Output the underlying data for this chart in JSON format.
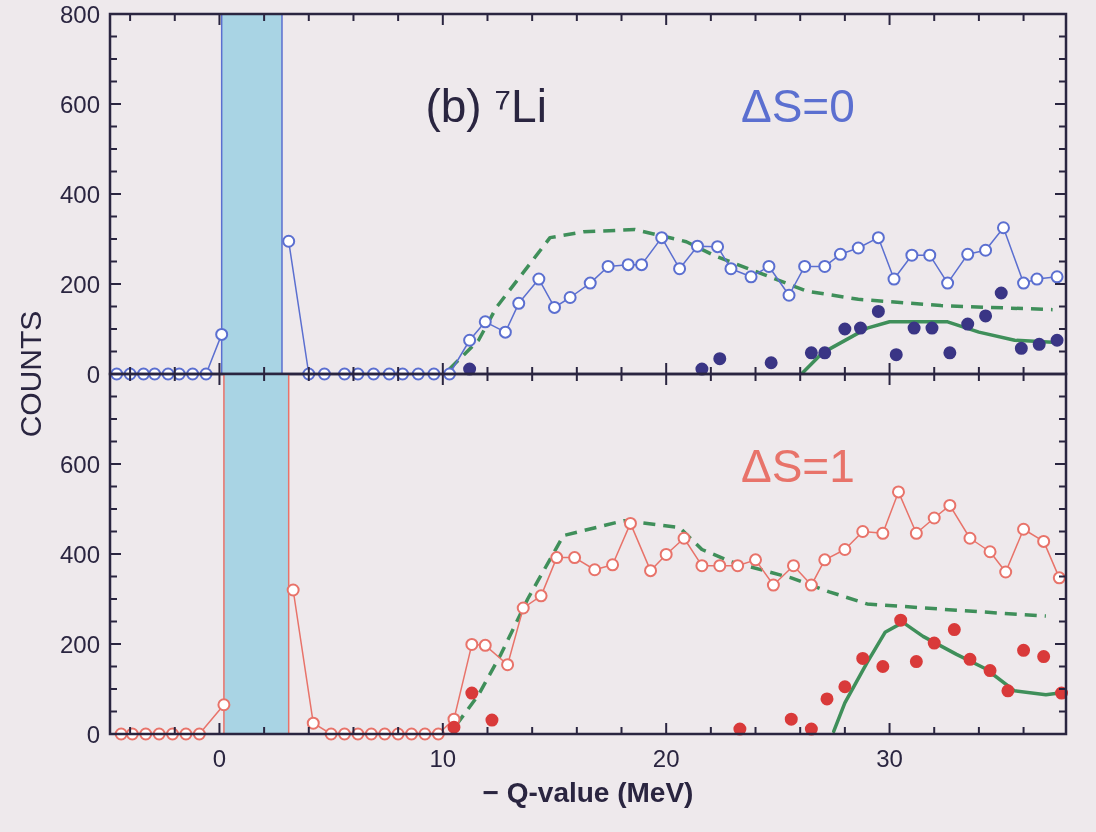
{
  "chart_data": [
    {
      "type": "line",
      "annotations": [
        "(b)  ⁷Li",
        "ΔS=0"
      ],
      "ylabel": "COUNTS",
      "xlim": [
        -4.9,
        37.9
      ],
      "ylim": [
        0,
        800
      ],
      "xticks": [
        {
          "value": -4,
          "label": null
        },
        {
          "value": -2,
          "label": null
        },
        0,
        {
          "value": 2,
          "label": null
        },
        {
          "value": 4,
          "label": null
        },
        {
          "value": 6,
          "label": null
        },
        {
          "value": 8,
          "label": null
        },
        10,
        {
          "value": 12,
          "label": null
        },
        {
          "value": 14,
          "label": null
        },
        {
          "value": 16,
          "label": null
        },
        {
          "value": 18,
          "label": null
        },
        20,
        {
          "value": 22,
          "label": null
        },
        {
          "value": 24,
          "label": null
        },
        {
          "value": 26,
          "label": null
        },
        {
          "value": 28,
          "label": null
        },
        30,
        {
          "value": 32,
          "label": null
        },
        {
          "value": 34,
          "label": null
        },
        {
          "value": 36,
          "label": null
        }
      ],
      "yticks": [
        0,
        {
          "value": 50,
          "label": null
        },
        {
          "value": 100,
          "label": null
        },
        {
          "value": 150,
          "label": null
        },
        200,
        {
          "value": 250,
          "label": null
        },
        {
          "value": 300,
          "label": null
        },
        {
          "value": 350,
          "label": null
        },
        400,
        {
          "value": 450,
          "label": null
        },
        {
          "value": 500,
          "label": null
        },
        {
          "value": 550,
          "label": null
        },
        600,
        {
          "value": 650,
          "label": null
        },
        {
          "value": 700,
          "label": null
        },
        {
          "value": 750,
          "label": null
        },
        800
      ],
      "tick_labels": "y",
      "bands": [
        {
          "axis": "x",
          "from": 0.1,
          "to": 2.8,
          "color": "#a9d4e4"
        }
      ],
      "series": [
        {
          "type": "line",
          "color": "#3f8f5a",
          "line_style": "dashed",
          "marker": "none",
          "x": [
            10.3,
            11.6,
            12.4,
            14.8,
            16.3,
            18.6,
            20.9,
            22.2,
            24.9,
            26.3,
            28.6,
            32.3,
            37.3
          ],
          "values": [
            11,
            75,
            148,
            303,
            316,
            321,
            294,
            262,
            211,
            184,
            166,
            152,
            143
          ]
        },
        {
          "type": "line",
          "color": "#3f8f5a",
          "marker": "none",
          "x": [
            26.1,
            27.0,
            29.0,
            30.0,
            32.6,
            34.0,
            35.6,
            37.5
          ],
          "values": [
            2,
            47,
            102,
            116,
            116,
            93,
            75,
            70
          ]
        },
        {
          "type": "line",
          "color": "#5b6fd0",
          "marker": "circle",
          "x": [
            -4.6,
            -4.0,
            -3.4,
            -2.9,
            -2.3,
            -1.8,
            -1.2,
            -0.6,
            0.1,
            1.5,
            3.1,
            4.0,
            4.7,
            5.6,
            6.2,
            6.9,
            7.6,
            8.2,
            8.9,
            9.6,
            10.3,
            11.2,
            11.9,
            12.8,
            13.4,
            14.3,
            15.0,
            15.7,
            16.6,
            17.4,
            18.3,
            18.9,
            19.8,
            20.6,
            21.4,
            22.3,
            22.9,
            23.8,
            24.6,
            25.5,
            26.2,
            27.1,
            27.8,
            28.6,
            29.5,
            30.2,
            31.0,
            31.8,
            32.6,
            33.5,
            34.3,
            35.1,
            36.0,
            36.6,
            37.5
          ],
          "values": [
            0,
            0,
            0,
            0,
            0,
            0,
            0,
            0,
            88,
            null,
            295,
            0,
            0,
            0,
            0,
            0,
            0,
            0,
            0,
            0,
            0,
            75,
            116,
            93,
            157,
            211,
            148,
            170,
            202,
            239,
            243,
            243,
            303,
            234,
            284,
            283,
            234,
            216,
            239,
            175,
            239,
            239,
            266,
            280,
            303,
            211,
            264,
            264,
            202,
            266,
            275,
            325,
            202,
            211,
            216
          ]
        },
        {
          "type": "scatter",
          "color": "#3a3585",
          "marker": "circle",
          "x": [
            11.2,
            21.6,
            22.4,
            24.7,
            26.5,
            27.1,
            28.0,
            28.7,
            29.5,
            30.3,
            31.1,
            31.9,
            32.7,
            33.5,
            34.3,
            35.0,
            35.9,
            36.7,
            37.5
          ],
          "values": [
            11,
            11,
            34,
            25,
            47,
            47,
            100,
            102,
            139,
            43,
            102,
            102,
            47,
            111,
            129,
            180,
            57,
            66,
            75
          ]
        }
      ]
    },
    {
      "type": "line",
      "annotations": [
        "ΔS=1"
      ],
      "xlabel": "− Q-value (MeV)",
      "xlim": [
        -4.9,
        37.9
      ],
      "ylim": [
        0,
        800
      ],
      "xticks": [
        {
          "value": -4,
          "label": null
        },
        {
          "value": -2,
          "label": null
        },
        0,
        {
          "value": 2,
          "label": null
        },
        {
          "value": 4,
          "label": null
        },
        {
          "value": 6,
          "label": null
        },
        {
          "value": 8,
          "label": null
        },
        10,
        {
          "value": 12,
          "label": null
        },
        {
          "value": 14,
          "label": null
        },
        {
          "value": 16,
          "label": null
        },
        {
          "value": 18,
          "label": null
        },
        20,
        {
          "value": 22,
          "label": null
        },
        {
          "value": 24,
          "label": null
        },
        {
          "value": 26,
          "label": null
        },
        {
          "value": 28,
          "label": null
        },
        30,
        {
          "value": 32,
          "label": null
        },
        {
          "value": 34,
          "label": null
        },
        {
          "value": 36,
          "label": null
        }
      ],
      "yticks": [
        0,
        {
          "value": 50,
          "label": null
        },
        {
          "value": 100,
          "label": null
        },
        {
          "value": 150,
          "label": null
        },
        200,
        {
          "value": 250,
          "label": null
        },
        {
          "value": 300,
          "label": null
        },
        {
          "value": 350,
          "label": null
        },
        400,
        {
          "value": 450,
          "label": null
        },
        {
          "value": 500,
          "label": null
        },
        {
          "value": 550,
          "label": null
        },
        600,
        {
          "value": 650,
          "label": null
        },
        {
          "value": 700,
          "label": null
        },
        {
          "value": 750,
          "label": null
        },
        {
          "value": 800,
          "label": null
        }
      ],
      "bands": [
        {
          "axis": "x",
          "from": 0.2,
          "to": 3.1,
          "color": "#a9d4e4"
        }
      ],
      "series": [
        {
          "type": "line",
          "color": "#3f8f5a",
          "line_style": "dashed",
          "marker": "none",
          "x": [
            10.6,
            11.6,
            12.6,
            13.8,
            15.4,
            18.1,
            20.6,
            21.6,
            22.9,
            25.6,
            27.3,
            29.0,
            33.0,
            37.0
          ],
          "values": [
            20,
            87,
            177,
            300,
            441,
            474,
            459,
            410,
            383,
            347,
            316,
            289,
            275,
            262
          ]
        },
        {
          "type": "line",
          "color": "#3f8f5a",
          "marker": "none",
          "x": [
            27.5,
            28.0,
            29.0,
            29.8,
            30.6,
            31.5,
            33.0,
            34.3,
            35.6,
            37.0,
            37.6
          ],
          "values": [
            6,
            69,
            159,
            226,
            248,
            217,
            177,
            145,
            96,
            87,
            91
          ]
        },
        {
          "type": "line",
          "color": "#e8736a",
          "marker": "circle",
          "x": [
            -4.4,
            -3.9,
            -3.3,
            -2.7,
            -2.1,
            -1.5,
            -0.9,
            0.2,
            1.6,
            3.3,
            4.2,
            5.0,
            5.6,
            6.2,
            6.8,
            7.4,
            8.0,
            8.6,
            9.2,
            9.8,
            10.5,
            11.3,
            11.9,
            12.9,
            13.6,
            14.4,
            15.1,
            15.9,
            16.8,
            17.6,
            18.4,
            19.3,
            20.0,
            20.8,
            21.6,
            22.4,
            23.2,
            24.0,
            24.8,
            25.7,
            26.5,
            27.1,
            28.0,
            28.8,
            29.7,
            30.4,
            31.2,
            32.0,
            32.7,
            33.6,
            34.5,
            35.2,
            36.0,
            36.9,
            37.6
          ],
          "values": [
            0,
            0,
            0,
            0,
            0,
            0,
            0,
            65,
            null,
            320,
            24,
            0,
            0,
            0,
            0,
            0,
            0,
            0,
            0,
            0,
            33,
            199,
            197,
            154,
            280,
            307,
            392,
            392,
            365,
            376,
            468,
            363,
            399,
            435,
            374,
            374,
            374,
            387,
            331,
            374,
            331,
            387,
            410,
            450,
            446,
            538,
            446,
            480,
            508,
            435,
            405,
            360,
            455,
            428,
            347
          ]
        },
        {
          "type": "scatter",
          "color": "#d93a3a",
          "marker": "circle",
          "x": [
            10.5,
            11.3,
            12.2,
            23.3,
            25.6,
            26.5,
            27.2,
            28.0,
            28.8,
            29.7,
            30.5,
            31.2,
            32.0,
            32.9,
            33.6,
            34.5,
            35.3,
            36.0,
            36.9,
            37.7
          ],
          "values": [
            15,
            91,
            31,
            11,
            33,
            11,
            78,
            105,
            168,
            150,
            253,
            161,
            202,
            232,
            166,
            141,
            96,
            186,
            172,
            91
          ]
        }
      ]
    }
  ]
}
